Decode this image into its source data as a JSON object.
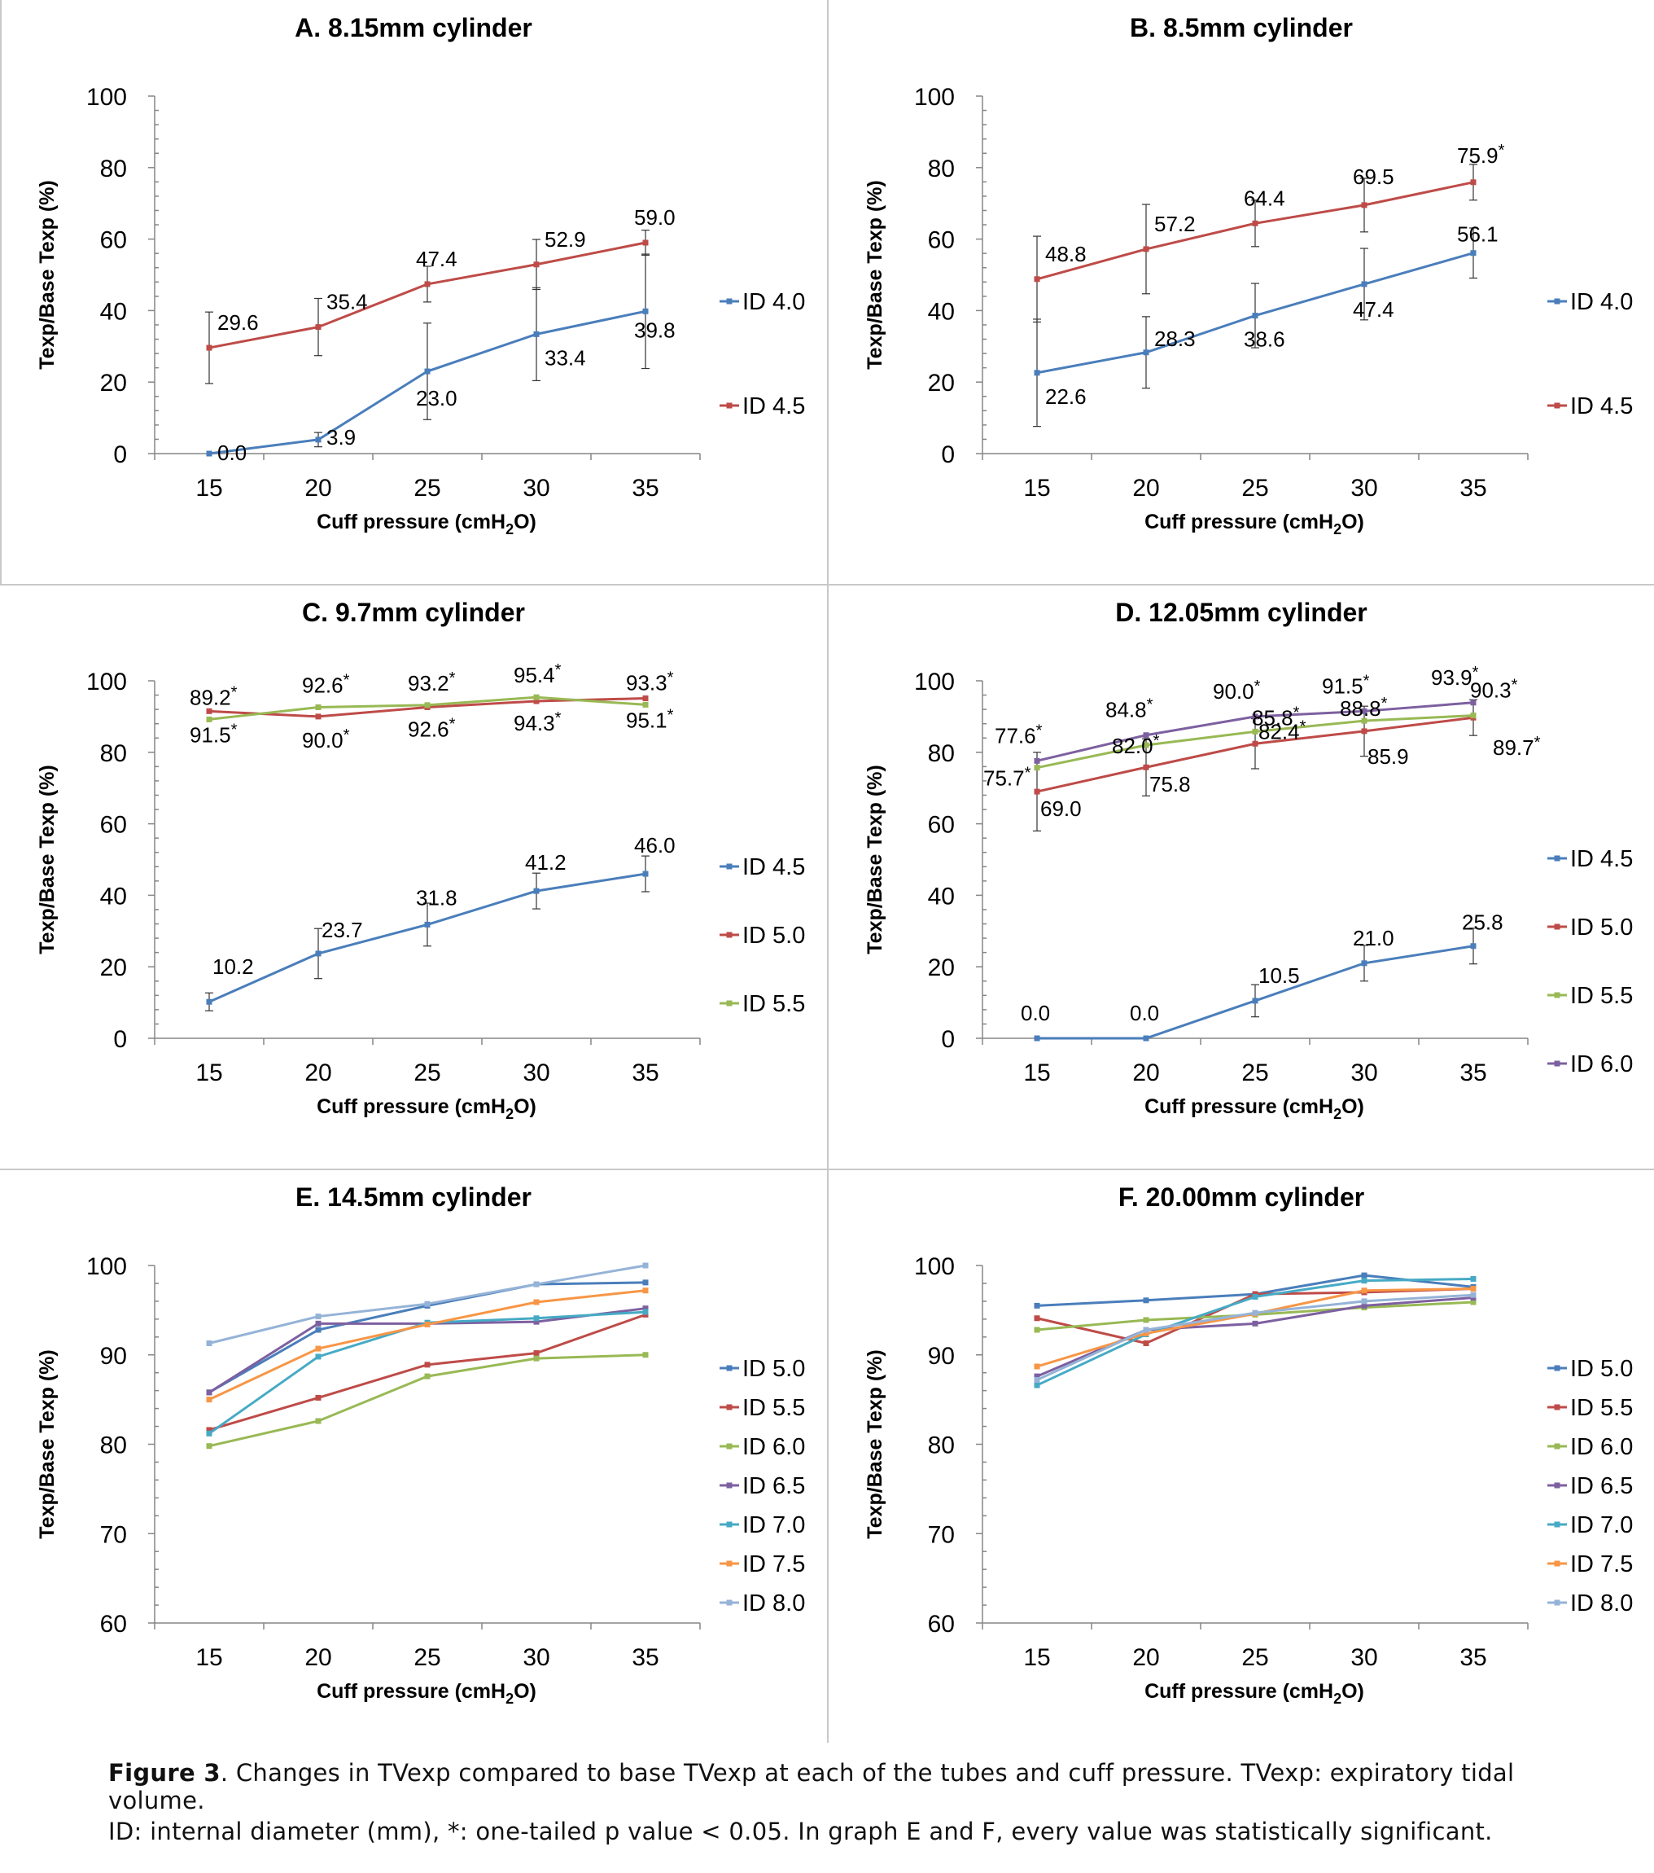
{
  "chart_data": [
    {
      "panel": "A",
      "type": "line",
      "title": "A. 8.15mm cylinder",
      "xlabel": "Cuff pressure (cmH2O)",
      "ylabel": "Texp/Base Texp (%)",
      "x": [
        15,
        20,
        25,
        30,
        35
      ],
      "ylim": [
        0,
        100
      ],
      "yticks": [
        0,
        20,
        40,
        60,
        80,
        100
      ],
      "grid": false,
      "legend": "right",
      "series": [
        {
          "name": "ID 4.0",
          "color": "#4a7ebb",
          "values": [
            0.0,
            3.9,
            23.0,
            33.4,
            39.8
          ],
          "labels": [
            "0.0",
            "3.9",
            "23.0",
            "33.4",
            "39.8"
          ],
          "sig": [
            false,
            false,
            false,
            false,
            false
          ],
          "err": [
            0,
            2,
            13.5,
            13,
            16
          ]
        },
        {
          "name": "ID 4.5",
          "color": "#be4b48",
          "values": [
            29.6,
            35.4,
            47.4,
            52.9,
            59.0
          ],
          "labels": [
            "29.6",
            "35.4",
            "47.4",
            "52.9",
            "59.0"
          ],
          "sig": [
            false,
            false,
            false,
            false,
            false
          ],
          "err": [
            10,
            8,
            5,
            7,
            3.5
          ]
        }
      ]
    },
    {
      "panel": "B",
      "type": "line",
      "title": "B. 8.5mm cylinder",
      "xlabel": "Cuff pressure (cmH2O)",
      "ylabel": "Texp/Base Texp (%)",
      "x": [
        15,
        20,
        25,
        30,
        35
      ],
      "ylim": [
        0,
        100
      ],
      "yticks": [
        0,
        20,
        40,
        60,
        80,
        100
      ],
      "grid": false,
      "legend": "right",
      "series": [
        {
          "name": "ID 4.0",
          "color": "#4a7ebb",
          "values": [
            22.6,
            28.3,
            38.6,
            47.4,
            56.1
          ],
          "labels": [
            "22.6",
            "28.3",
            "38.6",
            "47.4",
            "56.1"
          ],
          "sig": [
            false,
            false,
            false,
            false,
            false
          ],
          "err": [
            15,
            10,
            9,
            10,
            7
          ]
        },
        {
          "name": "ID 4.5",
          "color": "#be4b48",
          "values": [
            48.8,
            57.2,
            64.4,
            69.5,
            75.9
          ],
          "labels": [
            "48.8",
            "57.2",
            "64.4",
            "69.5",
            "75.9"
          ],
          "sig": [
            false,
            false,
            false,
            false,
            true
          ],
          "err": [
            12,
            12.5,
            6.5,
            7.5,
            5
          ]
        }
      ]
    },
    {
      "panel": "C",
      "type": "line",
      "title": "C. 9.7mm cylinder",
      "xlabel": "Cuff pressure (cmH2O)",
      "ylabel": "Texp/Base Texp (%)",
      "x": [
        15,
        20,
        25,
        30,
        35
      ],
      "ylim": [
        0,
        100
      ],
      "yticks": [
        0,
        20,
        40,
        60,
        80,
        100
      ],
      "grid": false,
      "legend": "right",
      "series": [
        {
          "name": "ID 4.5",
          "color": "#4a7ebb",
          "values": [
            10.2,
            23.7,
            31.8,
            41.2,
            46.0
          ],
          "labels": [
            "10.2",
            "23.7",
            "31.8",
            "41.2",
            "46.0"
          ],
          "sig": [
            false,
            false,
            false,
            false,
            false
          ],
          "err": [
            2.5,
            7,
            6,
            5,
            5
          ]
        },
        {
          "name": "ID 5.0",
          "color": "#be4b48",
          "values": [
            91.5,
            90.0,
            92.6,
            94.3,
            95.1
          ],
          "labels": [
            "91.5",
            "90.0",
            "92.6",
            "94.3",
            "95.1"
          ],
          "sig": [
            true,
            true,
            true,
            true,
            true
          ],
          "err": [
            0,
            0,
            0,
            0,
            0
          ]
        },
        {
          "name": "ID 5.5",
          "color": "#98b954",
          "values": [
            89.2,
            92.6,
            93.2,
            95.4,
            93.3
          ],
          "labels": [
            "89.2",
            "92.6",
            "93.2",
            "95.4",
            "93.3"
          ],
          "sig": [
            true,
            true,
            true,
            true,
            true
          ],
          "err": [
            0,
            0,
            0,
            0,
            0
          ]
        }
      ]
    },
    {
      "panel": "D",
      "type": "line",
      "title": "D. 12.05mm cylinder",
      "xlabel": "Cuff pressure (cmH2O)",
      "ylabel": "Texp/Base Texp (%)",
      "x": [
        15,
        20,
        25,
        30,
        35
      ],
      "ylim": [
        0,
        100
      ],
      "yticks": [
        0,
        20,
        40,
        60,
        80,
        100
      ],
      "grid": false,
      "legend": "right",
      "series": [
        {
          "name": "ID 4.5",
          "color": "#4a7ebb",
          "values": [
            0.0,
            0.0,
            10.5,
            21.0,
            25.8
          ],
          "labels": [
            "0.0",
            "0.0",
            "10.5",
            "21.0",
            "25.8"
          ],
          "sig": [
            false,
            false,
            false,
            false,
            false
          ],
          "err": [
            0,
            0,
            4.5,
            5,
            5
          ]
        },
        {
          "name": "ID 5.0",
          "color": "#be4b48",
          "values": [
            69.0,
            75.8,
            82.4,
            85.9,
            89.7
          ],
          "labels": [
            "69.0",
            "75.8",
            "82.4",
            "85.9",
            "89.7"
          ],
          "sig": [
            false,
            false,
            true,
            false,
            true
          ],
          "err": [
            11,
            8,
            7,
            7,
            5
          ]
        },
        {
          "name": "ID 5.5",
          "color": "#98b954",
          "values": [
            75.7,
            82.0,
            85.8,
            88.8,
            90.3
          ],
          "labels": [
            "75.7",
            "82.0",
            "85.8",
            "88.8",
            "90.3"
          ],
          "sig": [
            true,
            true,
            true,
            true,
            true
          ],
          "err": [
            0,
            0,
            0,
            0,
            0
          ]
        },
        {
          "name": "ID 6.0",
          "color": "#7d60a0",
          "values": [
            77.6,
            84.8,
            90.0,
            91.5,
            93.9
          ],
          "labels": [
            "77.6",
            "84.8",
            "90.0",
            "91.5",
            "93.9"
          ],
          "sig": [
            true,
            true,
            true,
            true,
            true
          ],
          "err": [
            0,
            0,
            0,
            0,
            0
          ]
        }
      ]
    },
    {
      "panel": "E",
      "type": "line",
      "title": "E. 14.5mm cylinder",
      "xlabel": "Cuff pressure (cmH2O)",
      "ylabel": "Texp/Base Texp (%)",
      "x": [
        15,
        20,
        25,
        30,
        35
      ],
      "ylim": [
        60,
        100
      ],
      "yticks": [
        60,
        70,
        80,
        90,
        100
      ],
      "grid": false,
      "legend": "right",
      "series": [
        {
          "name": "ID 5.0",
          "color": "#4a7ebb",
          "values": [
            85.8,
            92.8,
            95.5,
            97.9,
            98.1
          ]
        },
        {
          "name": "ID 5.5",
          "color": "#be4b48",
          "values": [
            81.6,
            85.2,
            88.9,
            90.2,
            94.5
          ]
        },
        {
          "name": "ID 6.0",
          "color": "#98b954",
          "values": [
            79.8,
            82.6,
            87.6,
            89.6,
            90.0
          ]
        },
        {
          "name": "ID 6.5",
          "color": "#7d60a0",
          "values": [
            85.8,
            93.5,
            93.5,
            93.7,
            95.2
          ]
        },
        {
          "name": "ID 7.0",
          "color": "#46aac5",
          "values": [
            81.2,
            89.8,
            93.6,
            94.1,
            94.8
          ]
        },
        {
          "name": "ID 7.5",
          "color": "#f79646",
          "values": [
            85.0,
            90.7,
            93.4,
            95.9,
            97.2
          ]
        },
        {
          "name": "ID 8.0",
          "color": "#95b3d7",
          "values": [
            91.3,
            94.3,
            95.7,
            97.9,
            100.0
          ]
        }
      ]
    },
    {
      "panel": "F",
      "type": "line",
      "title": "F. 20.00mm cylinder",
      "xlabel": "Cuff pressure (cmH2O)",
      "ylabel": "Texp/Base Texp (%)",
      "x": [
        15,
        20,
        25,
        30,
        35
      ],
      "ylim": [
        60,
        100
      ],
      "yticks": [
        60,
        70,
        80,
        90,
        100
      ],
      "grid": false,
      "legend": "right",
      "series": [
        {
          "name": "ID 5.0",
          "color": "#4a7ebb",
          "values": [
            95.5,
            96.1,
            96.8,
            98.9,
            97.6
          ]
        },
        {
          "name": "ID 5.5",
          "color": "#be4b48",
          "values": [
            94.1,
            91.3,
            96.8,
            97.0,
            97.4
          ]
        },
        {
          "name": "ID 6.0",
          "color": "#98b954",
          "values": [
            92.8,
            93.9,
            94.5,
            95.3,
            95.9
          ]
        },
        {
          "name": "ID 6.5",
          "color": "#7d60a0",
          "values": [
            87.6,
            92.8,
            93.5,
            95.5,
            96.4
          ]
        },
        {
          "name": "ID 7.0",
          "color": "#46aac5",
          "values": [
            86.6,
            92.3,
            96.5,
            98.3,
            98.5
          ]
        },
        {
          "name": "ID 7.5",
          "color": "#f79646",
          "values": [
            88.7,
            92.4,
            94.6,
            97.2,
            97.4
          ]
        },
        {
          "name": "ID 8.0",
          "color": "#95b3d7",
          "values": [
            87.2,
            92.8,
            94.7,
            96.0,
            96.7
          ]
        }
      ]
    }
  ],
  "caption": {
    "figure_label": "Figure 3",
    "line1": ". Changes in TVexp compared to base TVexp at each of the tubes and cuff pressure. TVexp: expiratory tidal volume.",
    "line2": "ID: internal diameter (mm), *: one-tailed p value < 0.05. In graph E and F, every value was statistically significant."
  }
}
